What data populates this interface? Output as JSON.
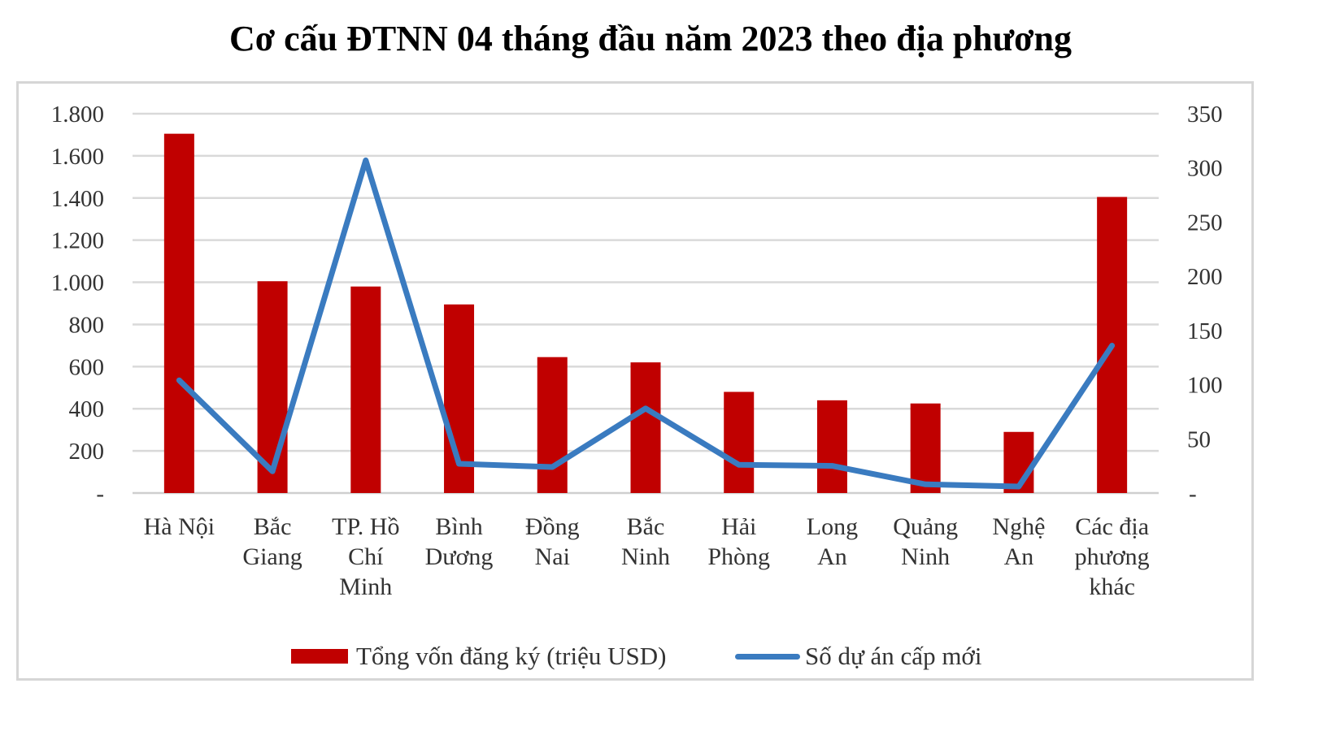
{
  "chart_data": {
    "type": "bar",
    "title": "Cơ cấu ĐTNN 04 tháng đầu năm 2023 theo địa phương",
    "categories": [
      [
        "Hà Nội"
      ],
      [
        "Bắc",
        "Giang"
      ],
      [
        "TP. Hồ",
        "Chí",
        "Minh"
      ],
      [
        "Bình",
        "Dương"
      ],
      [
        "Đồng",
        "Nai"
      ],
      [
        "Bắc",
        "Ninh"
      ],
      [
        "Hải",
        "Phòng"
      ],
      [
        "Long",
        "An"
      ],
      [
        "Quảng",
        "Ninh"
      ],
      [
        "Nghệ",
        "An"
      ],
      [
        "Các địa",
        "phương",
        "khác"
      ]
    ],
    "series": [
      {
        "name": "Tổng vốn đăng ký (triệu USD)",
        "type": "bar",
        "axis": "left",
        "color": "#c00000",
        "values": [
          1705,
          1005,
          980,
          895,
          645,
          620,
          480,
          440,
          425,
          290,
          1405
        ]
      },
      {
        "name": "Số dự án cấp mới",
        "type": "line",
        "axis": "right",
        "color": "#3a7bc0",
        "values": [
          104,
          20,
          307,
          27,
          24,
          78,
          26,
          25,
          8,
          6,
          136
        ]
      }
    ],
    "y_left": {
      "lim": [
        0,
        1800
      ],
      "ticks": [
        0,
        200,
        400,
        600,
        800,
        1000,
        1200,
        1400,
        1600,
        1800
      ],
      "tick_labels": [
        "-",
        "200",
        "400",
        "600",
        "800",
        "1.000",
        "1.200",
        "1.400",
        "1.600",
        "1.800"
      ]
    },
    "y_right": {
      "lim": [
        0,
        350
      ],
      "ticks": [
        0,
        50,
        100,
        150,
        200,
        250,
        300,
        350
      ],
      "tick_labels": [
        "-",
        "50",
        "100",
        "150",
        "200",
        "250",
        "300",
        "350"
      ]
    },
    "grid": true,
    "legend_position": "bottom"
  }
}
